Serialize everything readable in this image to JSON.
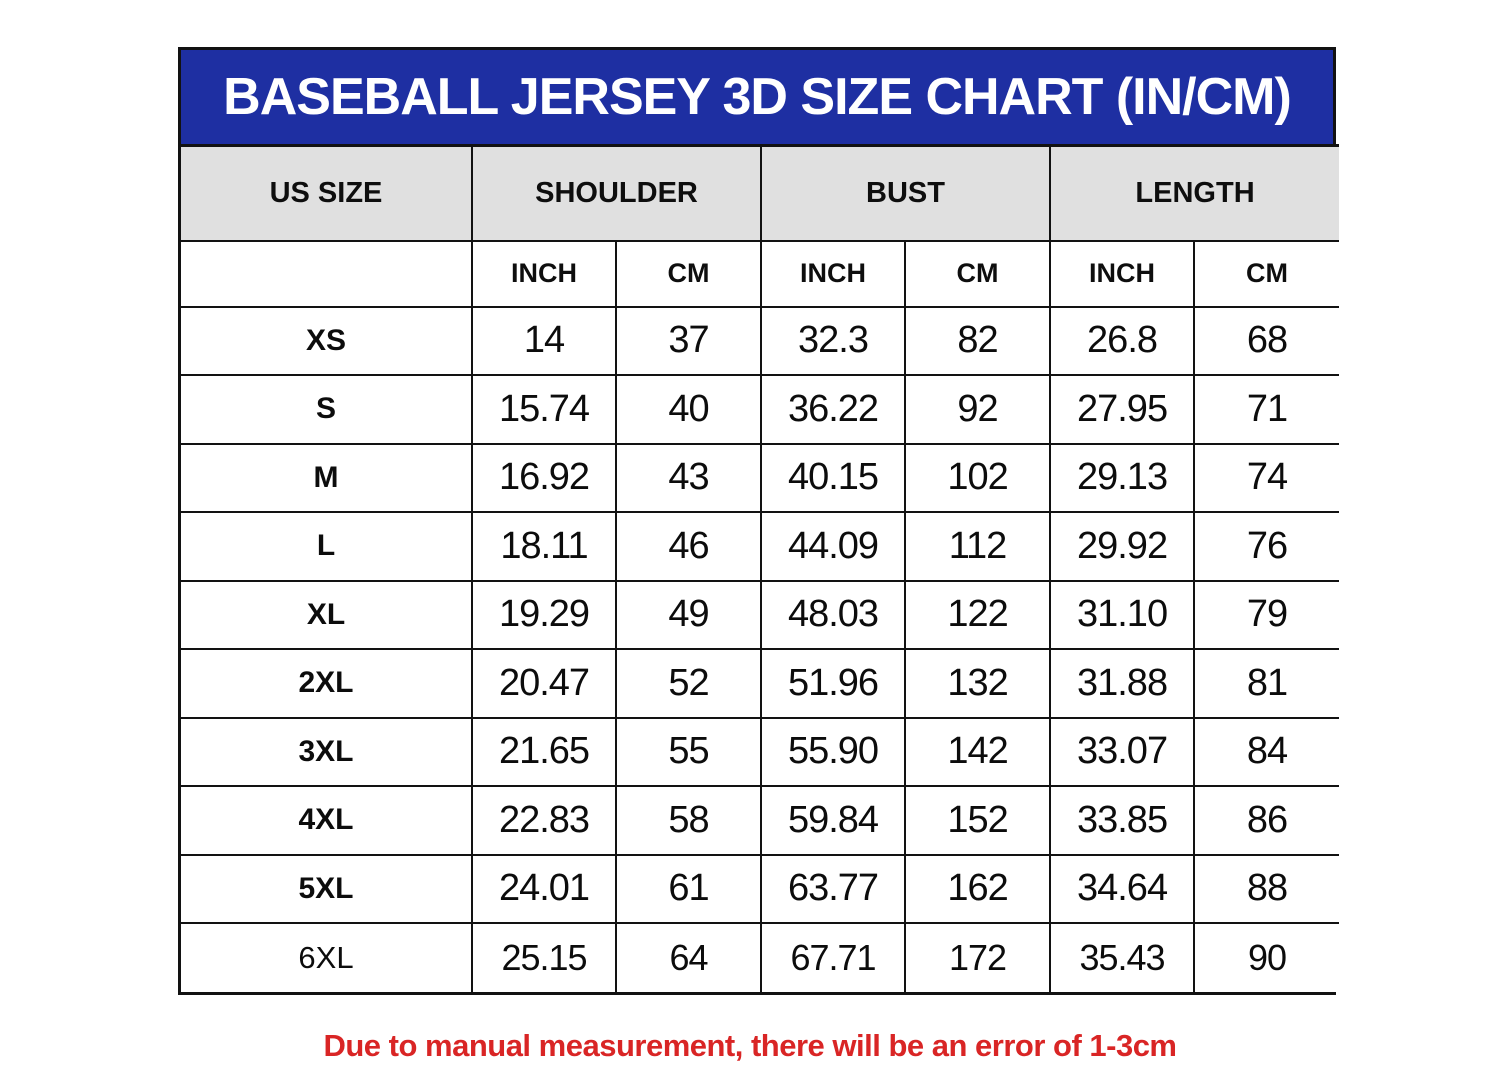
{
  "title": "BASEBALL JERSEY 3D SIZE CHART (IN/CM)",
  "footer": "Due to manual measurement, there will be an error of 1-3cm",
  "colors": {
    "header_bg": "#1e2fa2",
    "header_text": "#ffffff",
    "subheader_bg": "#e0e0e0",
    "border": "#121212",
    "footer_text": "#d92525",
    "cell_bg": "#ffffff"
  },
  "table": {
    "group_headers": [
      "US SIZE",
      "SHOULDER",
      "BUST",
      "LENGTH"
    ],
    "unit_headers": [
      "INCH",
      "CM",
      "INCH",
      "CM",
      "INCH",
      "CM"
    ],
    "rows": [
      {
        "size": "XS",
        "values": [
          "14",
          "37",
          "32.3",
          "82",
          "26.8",
          "68"
        ]
      },
      {
        "size": "S",
        "values": [
          "15.74",
          "40",
          "36.22",
          "92",
          "27.95",
          "71"
        ]
      },
      {
        "size": "M",
        "values": [
          "16.92",
          "43",
          "40.15",
          "102",
          "29.13",
          "74"
        ]
      },
      {
        "size": "L",
        "values": [
          "18.11",
          "46",
          "44.09",
          "112",
          "29.92",
          "76"
        ]
      },
      {
        "size": "XL",
        "values": [
          "19.29",
          "49",
          "48.03",
          "122",
          "31.10",
          "79"
        ]
      },
      {
        "size": "2XL",
        "values": [
          "20.47",
          "52",
          "51.96",
          "132",
          "31.88",
          "81"
        ]
      },
      {
        "size": "3XL",
        "values": [
          "21.65",
          "55",
          "55.90",
          "142",
          "33.07",
          "84"
        ]
      },
      {
        "size": "4XL",
        "values": [
          "22.83",
          "58",
          "59.84",
          "152",
          "33.85",
          "86"
        ]
      },
      {
        "size": "5XL",
        "values": [
          "24.01",
          "61",
          "63.77",
          "162",
          "34.64",
          "88"
        ]
      },
      {
        "size": "6XL",
        "values": [
          "25.15",
          "64",
          "67.71",
          "172",
          "35.43",
          "90"
        ],
        "alt": true
      }
    ]
  },
  "chart_data": {
    "type": "table",
    "title": "BASEBALL JERSEY 3D SIZE CHART (IN/CM)",
    "columns": [
      "US SIZE",
      "SHOULDER (INCH)",
      "SHOULDER (CM)",
      "BUST (INCH)",
      "BUST (CM)",
      "LENGTH (INCH)",
      "LENGTH (CM)"
    ],
    "rows": [
      [
        "XS",
        14,
        37,
        32.3,
        82,
        26.8,
        68
      ],
      [
        "S",
        15.74,
        40,
        36.22,
        92,
        27.95,
        71
      ],
      [
        "M",
        16.92,
        43,
        40.15,
        102,
        29.13,
        74
      ],
      [
        "L",
        18.11,
        46,
        44.09,
        112,
        29.92,
        76
      ],
      [
        "XL",
        19.29,
        49,
        48.03,
        122,
        31.1,
        79
      ],
      [
        "2XL",
        20.47,
        52,
        51.96,
        132,
        31.88,
        81
      ],
      [
        "3XL",
        21.65,
        55,
        55.9,
        142,
        33.07,
        84
      ],
      [
        "4XL",
        22.83,
        58,
        59.84,
        152,
        33.85,
        86
      ],
      [
        "5XL",
        24.01,
        61,
        63.77,
        162,
        34.64,
        88
      ],
      [
        "6XL",
        25.15,
        64,
        67.71,
        172,
        35.43,
        90
      ]
    ],
    "footnote": "Due to manual measurement, there will be an error of 1-3cm"
  }
}
